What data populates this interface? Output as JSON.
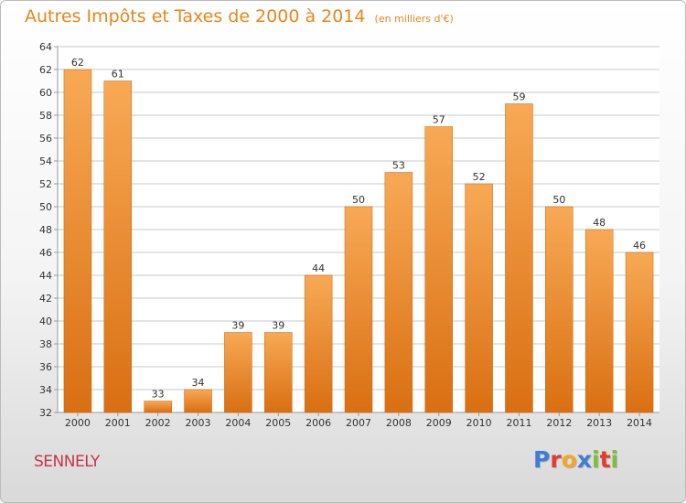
{
  "header": {
    "title": "Autres Impôts et Taxes de 2000 à 2014",
    "subtitle": "(en milliers d'€)"
  },
  "footer": {
    "location": "SENNELY",
    "logo_letters": [
      "P",
      "r",
      "o",
      "x",
      "i",
      "t",
      "i"
    ],
    "logo_colors": [
      "#3b7dd8",
      "#e53b2c",
      "#f5a623",
      "#3b7dd8",
      "#7bbf3a",
      "#e53b2c",
      "#7bbf3a"
    ]
  },
  "colors": {
    "bar_light": "#f8a955",
    "bar_dark": "#d96f12",
    "title": "#e8861a",
    "location": "#c8344a",
    "grid": "#c8c8c8",
    "axis_text": "#333333"
  },
  "chart_data": {
    "type": "bar",
    "title": "Autres Impôts et Taxes de 2000 à 2014",
    "subtitle": "(en milliers d'€)",
    "categories": [
      "2000",
      "2001",
      "2002",
      "2003",
      "2004",
      "2005",
      "2006",
      "2007",
      "2008",
      "2009",
      "2010",
      "2011",
      "2012",
      "2013",
      "2014"
    ],
    "values": [
      62,
      61,
      33,
      34,
      39,
      39,
      44,
      50,
      53,
      57,
      52,
      59,
      50,
      48,
      46
    ],
    "ylim": [
      32,
      64
    ],
    "yticks": [
      32,
      34,
      36,
      38,
      40,
      42,
      44,
      46,
      48,
      50,
      52,
      54,
      56,
      58,
      60,
      62,
      64
    ],
    "xlabel": "",
    "ylabel": "",
    "grid": true,
    "data_labels": true
  }
}
